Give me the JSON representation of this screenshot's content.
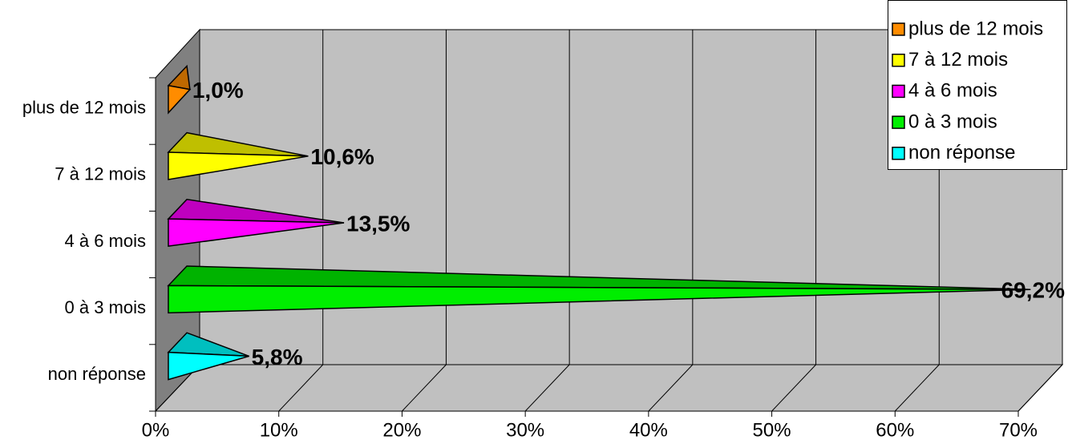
{
  "chart_data": {
    "type": "pyramid-bar",
    "categories": [
      "plus de 12 mois",
      "7 à 12 mois",
      "4 à 6 mois",
      "0 à 3 mois",
      "non réponse"
    ],
    "values": [
      1.0,
      10.6,
      13.5,
      69.2,
      5.8
    ],
    "value_labels": [
      "1,0%",
      "10,6%",
      "13,5%",
      "69,2%",
      "5,8%"
    ],
    "colors": [
      "#ff8c00",
      "#ffff00",
      "#ff00ff",
      "#00ee00",
      "#00ffff"
    ],
    "xlim": [
      0,
      70
    ],
    "xticks": [
      {
        "value": 0,
        "label": "0%"
      },
      {
        "value": 10,
        "label": "10%"
      },
      {
        "value": 20,
        "label": "20%"
      },
      {
        "value": 30,
        "label": "30%"
      },
      {
        "value": 40,
        "label": "40%"
      },
      {
        "value": 50,
        "label": "50%"
      },
      {
        "value": 60,
        "label": "60%"
      },
      {
        "value": 70,
        "label": "70%"
      }
    ],
    "grid": true,
    "legend": "top-right"
  }
}
